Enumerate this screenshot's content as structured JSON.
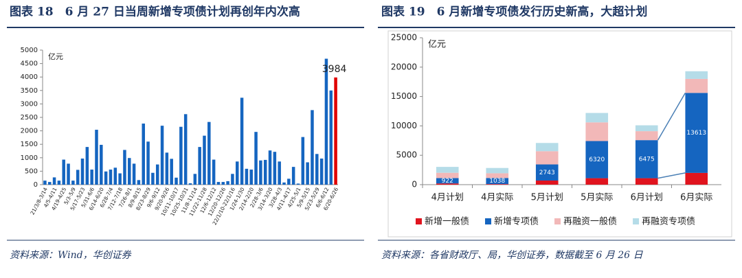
{
  "chart_data": [
    {
      "type": "bar",
      "title": "图表 18　6 月 27 日当周新增专项债计划再创年内次高",
      "source": "资料来源：Wind，华创证券",
      "unit": "亿元",
      "categories": [
        "21/3/8-3/14",
        null,
        "4/5-4/11",
        null,
        "4/19-4/25",
        null,
        "5/3-5/9",
        null,
        "5/17-5/23",
        null,
        "5/31-6/6",
        null,
        "6/14-6/20",
        null,
        "6/28-7/4",
        null,
        "7/12-7/18",
        null,
        "7/26-8/1",
        null,
        "8/9-8/15",
        null,
        "8/23-8/29",
        null,
        "9/6-9/12",
        null,
        "9/20-9/26",
        null,
        "10/11-10/17",
        null,
        "10/25-10/31",
        null,
        "11/8-11/14",
        null,
        "11/22-11/28",
        null,
        "12/6-12/12",
        null,
        "12/20-12/26",
        null,
        "22/1/10-22/1/16",
        null,
        "1/24-1/30",
        null,
        "2/14-2/20",
        null,
        "2/28-3/6",
        null,
        "3/14-3/20",
        null,
        "3/28-4/3",
        null,
        "4/11-4/17",
        null,
        "4/25-5/1",
        null,
        "5/9-5/15",
        null,
        "5/23-5/29",
        null,
        "6/6-6/12",
        null,
        "6/20-6/26"
      ],
      "values": [
        150,
        100,
        270,
        150,
        930,
        780,
        150,
        550,
        970,
        1400,
        560,
        2040,
        1480,
        490,
        560,
        630,
        420,
        1290,
        990,
        780,
        170,
        2270,
        1600,
        440,
        750,
        2190,
        1190,
        960,
        260,
        2150,
        2620,
        50,
        400,
        1400,
        1820,
        2330,
        930,
        100,
        100,
        130,
        400,
        860,
        3230,
        590,
        560,
        1960,
        900,
        920,
        1270,
        1220,
        860,
        80,
        220,
        660,
        40,
        1770,
        830,
        2770,
        1140,
        970,
        4680,
        3500,
        3984
      ],
      "color": "#1565c0",
      "last_color": "#e00000",
      "label_last": true,
      "ylim": [
        0,
        5000
      ],
      "yticks": [
        0,
        500,
        1000,
        1500,
        2000,
        2500,
        3000,
        3500,
        4000,
        4500,
        5000
      ]
    },
    {
      "type": "stacked_bar",
      "title": "图表 19　6 月新增专项债发行历史新高，大超计划",
      "source": "资料来源：各省财政厅、局，华创证券，数据截至 6 月 26 日",
      "unit": "亿元",
      "categories": [
        "4月计划",
        "4月实际",
        "5月计划",
        "5月实际",
        "6月计划",
        "6月实际"
      ],
      "series": [
        {
          "name": "新增一般债",
          "color": "#e0141e",
          "values": [
            200,
            100,
            700,
            1100,
            1100,
            2000
          ]
        },
        {
          "name": "新增专项债",
          "color": "#1565c0",
          "values": [
            922,
            1038,
            2743,
            6320,
            6475,
            13613
          ],
          "data_labels": true
        },
        {
          "name": "再融资一般债",
          "color": "#f2b8b8",
          "values": [
            900,
            800,
            2250,
            3180,
            1525,
            2387
          ]
        },
        {
          "name": "再融资专项债",
          "color": "#b5dce8",
          "values": [
            1000,
            900,
            1400,
            1600,
            1000,
            1300
          ]
        }
      ],
      "ylim": [
        0,
        25000
      ],
      "yticks": [
        0,
        5000,
        10000,
        15000,
        20000,
        25000
      ]
    }
  ]
}
